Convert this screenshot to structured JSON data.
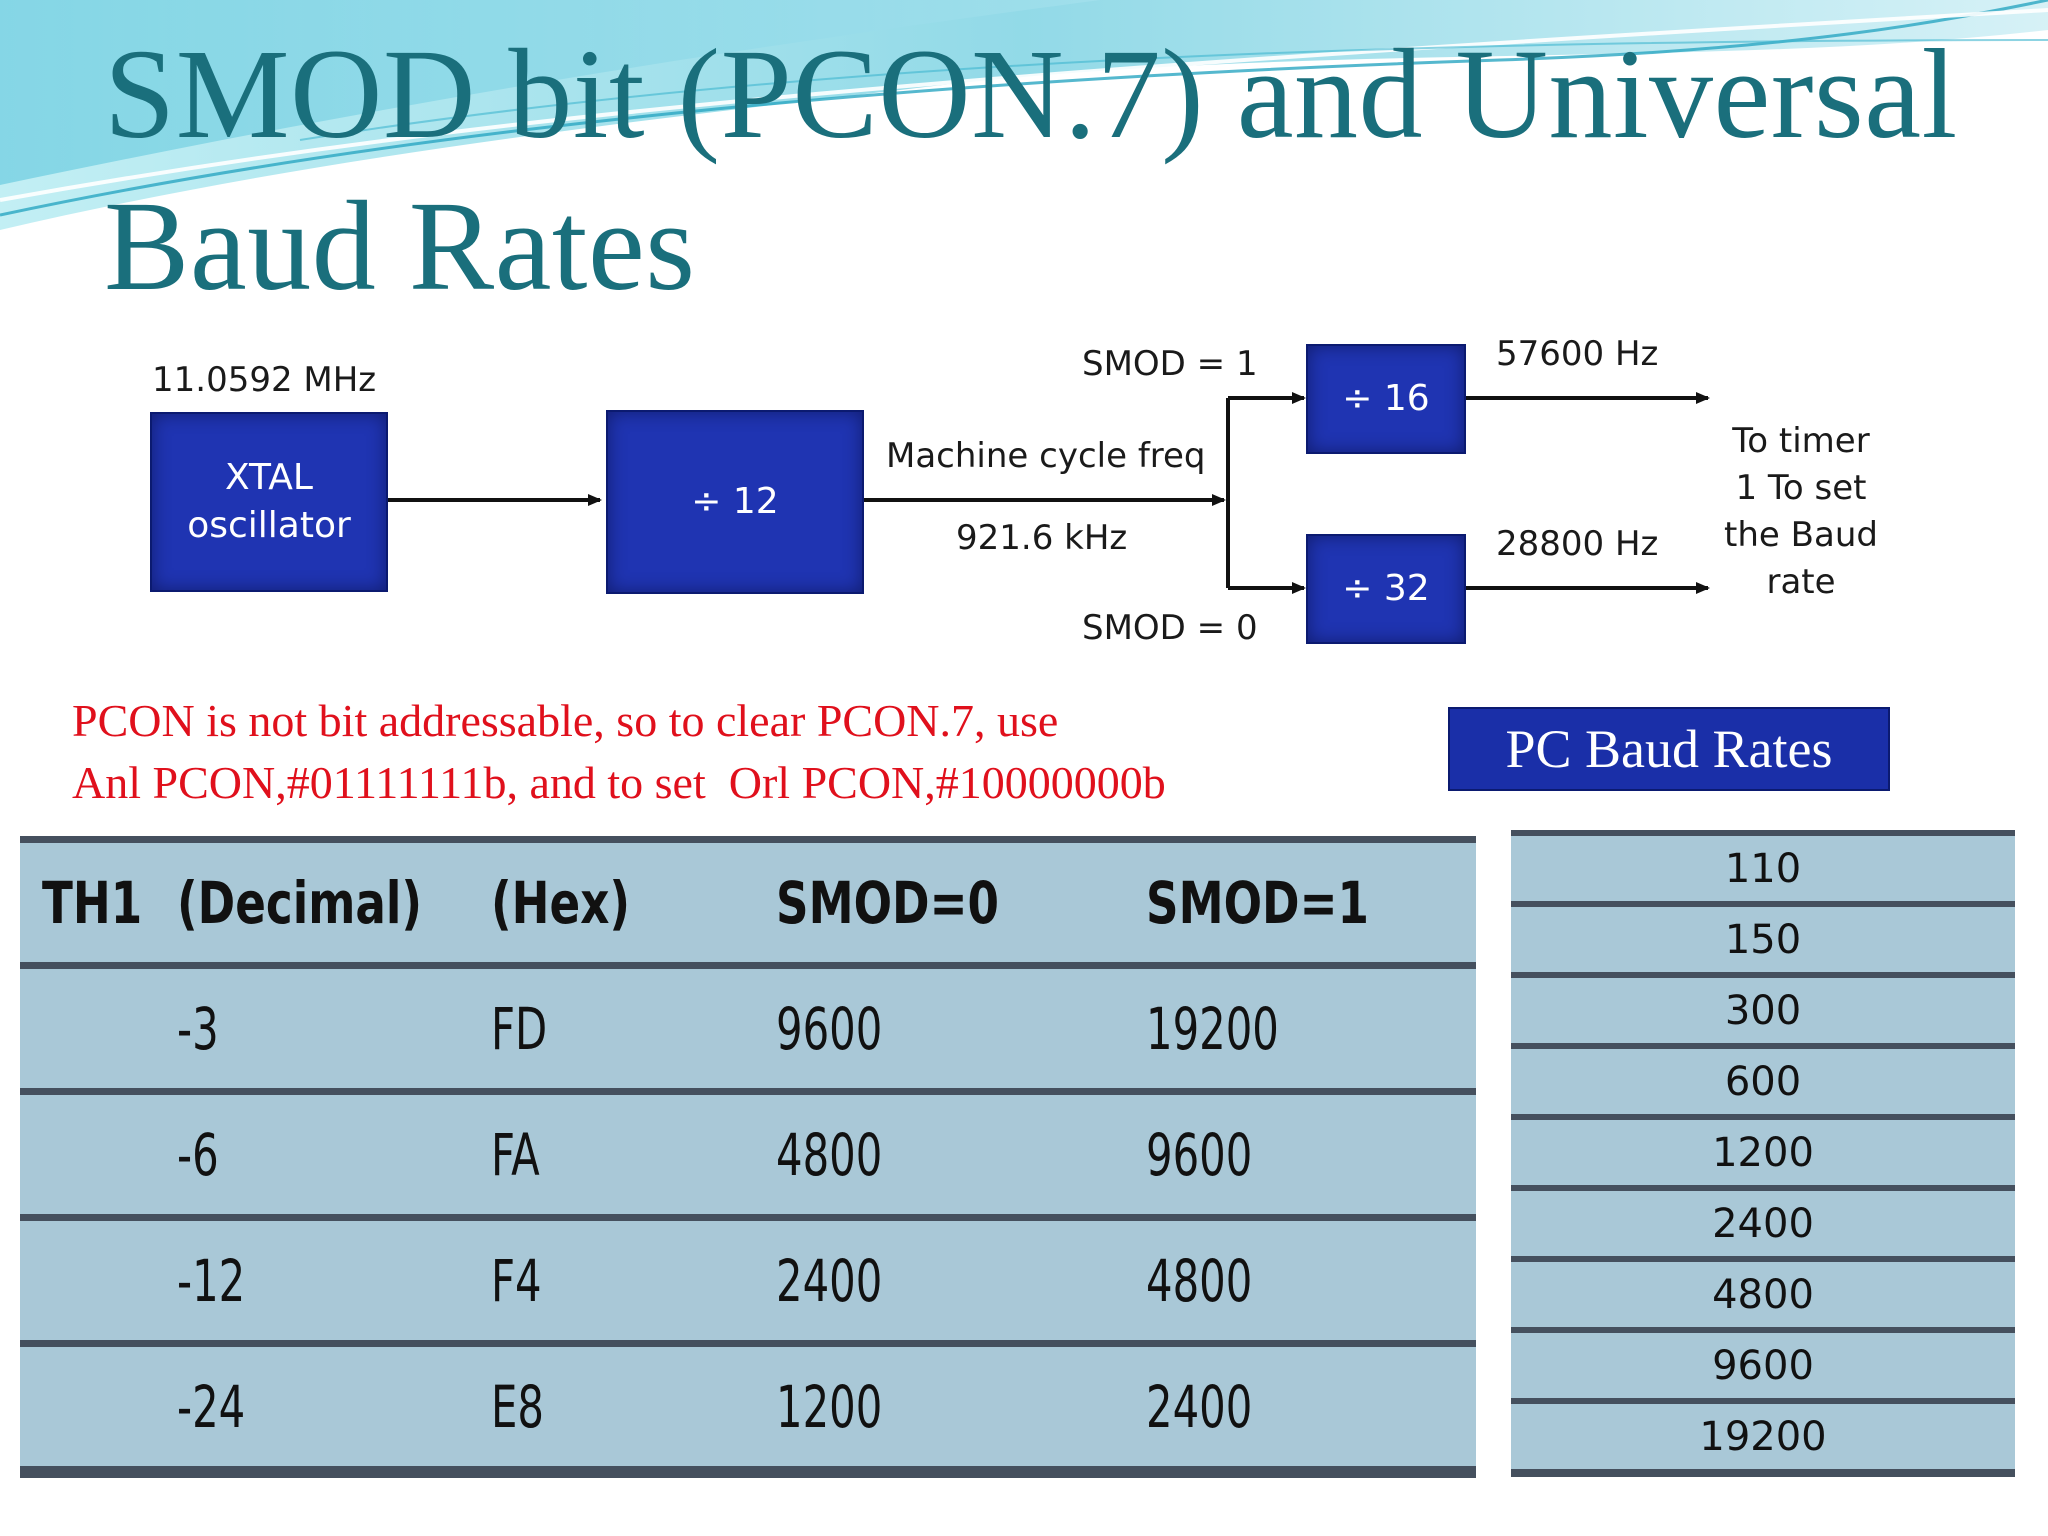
{
  "title": {
    "line1": "SMOD bit (PCON.7) and Universal",
    "line2": "Baud Rates"
  },
  "diagram": {
    "crystal_freq": "11.0592 MHz",
    "oscillator_line1": "XTAL",
    "oscillator_line2": "oscillator",
    "divider_main": "÷ 12",
    "machine_cycle_label": "Machine cycle freq",
    "machine_cycle_freq": "921.6 kHz",
    "smod1_label": "SMOD = 1",
    "smod0_label": "SMOD = 0",
    "divider_16": "÷ 16",
    "divider_32": "÷ 32",
    "freq_16": "57600 Hz",
    "freq_32": "28800 Hz",
    "destination": [
      "To timer",
      "1 To set",
      "the Baud",
      "rate"
    ]
  },
  "note": {
    "line1": "PCON is not bit addressable, so to clear PCON.7, use",
    "line2": "Anl PCON,#01111111b, and to set  Orl PCON,#10000000b"
  },
  "th1_table": {
    "headers": [
      "TH1",
      "(Decimal)",
      "(Hex)",
      "SMOD=0",
      "SMOD=1"
    ],
    "rows": [
      [
        "",
        "-3",
        "FD",
        "9600",
        "19200"
      ],
      [
        "",
        "-6",
        "FA",
        "4800",
        "9600"
      ],
      [
        "",
        "-12",
        "F4",
        "2400",
        "4800"
      ],
      [
        "",
        "-24",
        "E8",
        "1200",
        "2400"
      ]
    ]
  },
  "pc_baud": {
    "header": "PC Baud Rates",
    "rates": [
      "110",
      "150",
      "300",
      "600",
      "1200",
      "2400",
      "4800",
      "9600",
      "19200"
    ]
  },
  "colors": {
    "title": "#1a6f7c",
    "block_blue": "#1f34b2",
    "note_red": "#e0101c",
    "table_bg": "#a9c8d7",
    "table_rule": "#45505e"
  }
}
